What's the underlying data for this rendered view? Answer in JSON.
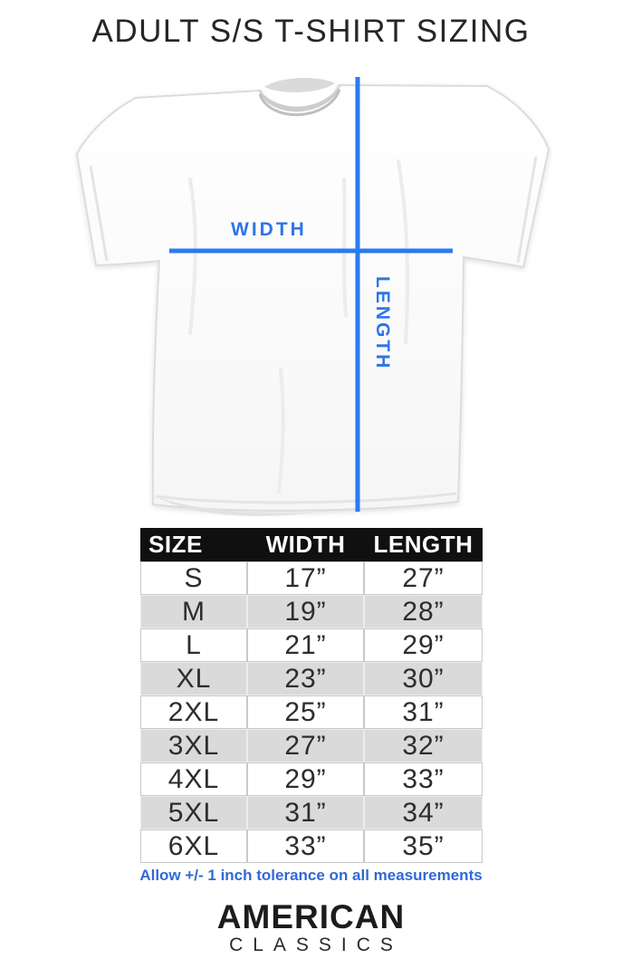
{
  "title": "ADULT S/S T-SHIRT SIZING",
  "diagram": {
    "width_label": "WIDTH",
    "length_label": "LENGTH"
  },
  "table": {
    "headers": [
      "SIZE",
      "WIDTH",
      "LENGTH"
    ],
    "rows": [
      {
        "size": "S",
        "width": "17”",
        "length": "27”"
      },
      {
        "size": "M",
        "width": "19”",
        "length": "28”"
      },
      {
        "size": "L",
        "width": "21”",
        "length": "29”"
      },
      {
        "size": "XL",
        "width": "23”",
        "length": "30”"
      },
      {
        "size": "2XL",
        "width": "25”",
        "length": "31”"
      },
      {
        "size": "3XL",
        "width": "27”",
        "length": "32”"
      },
      {
        "size": "4XL",
        "width": "29”",
        "length": "33”"
      },
      {
        "size": "5XL",
        "width": "31”",
        "length": "34”"
      },
      {
        "size": "6XL",
        "width": "33”",
        "length": "35”"
      }
    ]
  },
  "note": "Allow +/- 1 inch tolerance on all measurements",
  "brand": {
    "name": "AMERICAN",
    "subname": "CLASSICS"
  },
  "colors": {
    "line_blue": "#2b7af0",
    "label_blue": "#2f74e8",
    "note_blue": "#3069d6",
    "header_bg": "#101010",
    "row_gray": "#dadada",
    "text_dark": "#2d2d2d",
    "title_color": "#262626"
  }
}
